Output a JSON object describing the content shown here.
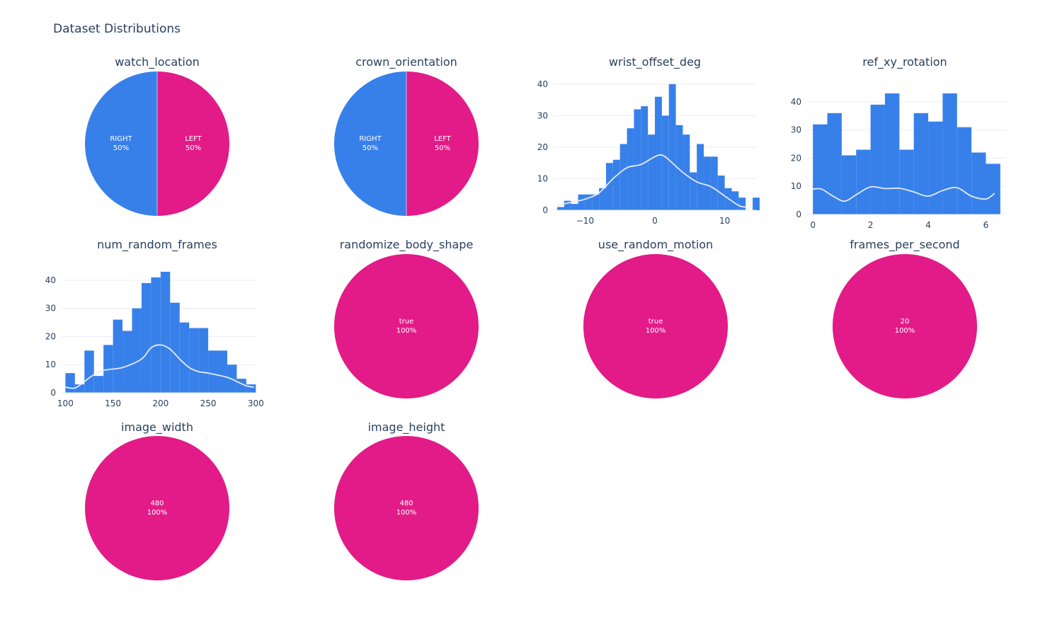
{
  "title": "Dataset Distributions",
  "colors": {
    "blue": "#3780ea",
    "pink": "#e21b88",
    "kde": "#e8eaf2",
    "grid": "#e9edf4",
    "axis_text": "#2a3f5f"
  },
  "chart_data": [
    {
      "type": "pie",
      "title": "watch_location",
      "labels": [
        "RIGHT",
        "LEFT"
      ],
      "values": [
        50,
        50
      ],
      "percent_labels": [
        "50%",
        "50%"
      ],
      "colors": [
        "#3780ea",
        "#e21b88"
      ]
    },
    {
      "type": "pie",
      "title": "crown_orientation",
      "labels": [
        "RIGHT",
        "LEFT"
      ],
      "values": [
        50,
        50
      ],
      "percent_labels": [
        "50%",
        "50%"
      ],
      "colors": [
        "#3780ea",
        "#e21b88"
      ]
    },
    {
      "type": "bar",
      "subtype": "histogram_with_kde",
      "title": "wrist_offset_deg",
      "bin_start": -14,
      "bin_width": 1,
      "values": [
        1,
        3,
        2,
        5,
        5,
        5,
        7,
        15,
        16,
        21,
        26,
        32,
        33,
        24,
        36,
        30,
        40,
        27,
        24,
        12,
        21,
        17,
        17,
        11,
        7,
        6,
        4,
        0,
        4
      ],
      "kde_x": [
        -14,
        -12,
        -10,
        -8,
        -6,
        -4,
        -2,
        0,
        1,
        2,
        4,
        6,
        8,
        10,
        12,
        13
      ],
      "kde_y": [
        1.5,
        2.5,
        3.5,
        5.5,
        10,
        13.5,
        14.5,
        17,
        17.5,
        16,
        12,
        9,
        7.5,
        4.5,
        1.5,
        1
      ],
      "xlim": [
        -14.5,
        14.5
      ],
      "ylim": [
        0,
        42
      ],
      "xticks": [
        -10,
        0,
        10
      ],
      "xtick_labels": [
        "−10",
        "0",
        "10"
      ],
      "yticks": [
        0,
        10,
        20,
        30,
        40
      ],
      "ytick_labels": [
        "0",
        "10",
        "20",
        "30",
        "40"
      ],
      "grid": true
    },
    {
      "type": "bar",
      "subtype": "histogram_with_kde",
      "title": "ref_xy_rotation",
      "bin_start": 0,
      "bin_width": 0.5,
      "values": [
        32,
        36,
        21,
        23,
        39,
        43,
        23,
        36,
        33,
        43,
        31,
        22,
        18
      ],
      "kde_x": [
        0,
        0.3,
        0.7,
        1.1,
        1.5,
        2,
        2.5,
        3,
        3.5,
        4,
        4.5,
        5,
        5.5,
        6,
        6.3
      ],
      "kde_y": [
        9,
        9,
        6.5,
        4.7,
        7,
        9.8,
        9.2,
        9.3,
        8,
        6.5,
        8.5,
        9.5,
        6.5,
        5.5,
        7.5
      ],
      "xlim": [
        -0.2,
        6.7
      ],
      "ylim": [
        0,
        45
      ],
      "xticks": [
        0,
        2,
        4,
        6
      ],
      "xtick_labels": [
        "0",
        "2",
        "4",
        "6"
      ],
      "yticks": [
        0,
        10,
        20,
        30,
        40
      ],
      "ytick_labels": [
        "0",
        "10",
        "20",
        "30",
        "40"
      ],
      "grid": true
    },
    {
      "type": "bar",
      "subtype": "histogram_with_kde",
      "title": "num_random_frames",
      "bin_start": 100,
      "bin_width": 10,
      "values": [
        7,
        3,
        15,
        6,
        17,
        26,
        22,
        30,
        39,
        41,
        43,
        32,
        25,
        23,
        23,
        15,
        15,
        10,
        5,
        3
      ],
      "kde_x": [
        100,
        110,
        120,
        130,
        140,
        160,
        180,
        190,
        200,
        210,
        220,
        230,
        240,
        250,
        270,
        280,
        290,
        298
      ],
      "kde_y": [
        2,
        1.7,
        4,
        6.5,
        8,
        9,
        12,
        16,
        17,
        15.5,
        12,
        9,
        7.5,
        7,
        5.5,
        4,
        2.5,
        2
      ],
      "xlim": [
        96,
        302
      ],
      "ylim": [
        0,
        44
      ],
      "xticks": [
        100,
        150,
        200,
        250,
        300
      ],
      "xtick_labels": [
        "100",
        "150",
        "200",
        "250",
        "300"
      ],
      "yticks": [
        0,
        10,
        20,
        30,
        40
      ],
      "ytick_labels": [
        "0",
        "10",
        "20",
        "30",
        "40"
      ],
      "grid": true
    },
    {
      "type": "pie",
      "title": "randomize_body_shape",
      "labels": [
        "true"
      ],
      "values": [
        100
      ],
      "percent_labels": [
        "100%"
      ],
      "colors": [
        "#e21b88"
      ]
    },
    {
      "type": "pie",
      "title": "use_random_motion",
      "labels": [
        "true"
      ],
      "values": [
        100
      ],
      "percent_labels": [
        "100%"
      ],
      "colors": [
        "#e21b88"
      ]
    },
    {
      "type": "pie",
      "title": "frames_per_second",
      "labels": [
        "20"
      ],
      "values": [
        100
      ],
      "percent_labels": [
        "100%"
      ],
      "colors": [
        "#e21b88"
      ]
    },
    {
      "type": "pie",
      "title": "image_width",
      "labels": [
        "480"
      ],
      "values": [
        100
      ],
      "percent_labels": [
        "100%"
      ],
      "colors": [
        "#e21b88"
      ]
    },
    {
      "type": "pie",
      "title": "image_height",
      "labels": [
        "480"
      ],
      "values": [
        100
      ],
      "percent_labels": [
        "100%"
      ],
      "colors": [
        "#e21b88"
      ]
    }
  ]
}
